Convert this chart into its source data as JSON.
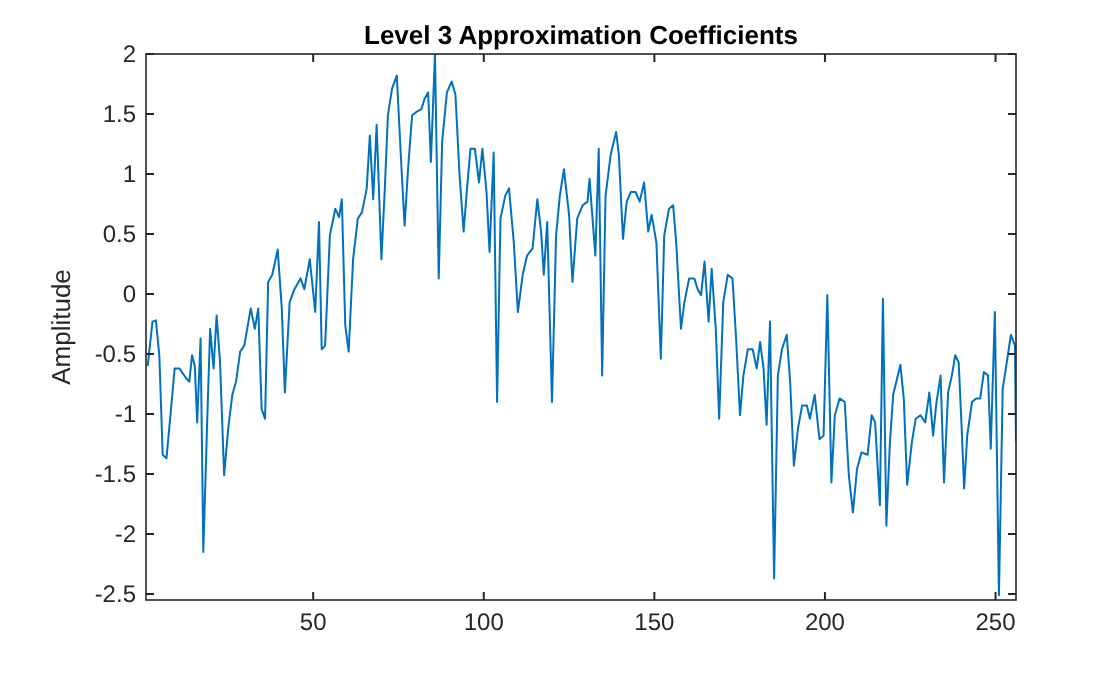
{
  "chart_data": {
    "type": "line",
    "title": "Level 3 Approximation Coefficients",
    "ylabel": "Amplitude",
    "x": [
      1.5,
      2.9,
      3.9,
      4.9,
      5.9,
      7,
      8.2,
      9.4,
      10.8,
      12.7,
      13.7,
      14.5,
      15.3,
      16,
      17,
      17.8,
      19,
      19.8,
      20.8,
      21.7,
      22.7,
      23.9,
      25.1,
      26.3,
      27.4,
      28.6,
      29.8,
      31.7,
      32.9,
      33.9,
      34.9,
      35.9,
      36.8,
      38,
      39.6,
      40.8,
      41.7,
      43.1,
      44.5,
      46.3,
      47.4,
      49,
      50.6,
      51.7,
      52.5,
      53.5,
      54.9,
      56.5,
      57.6,
      58.4,
      59.4,
      60.4,
      61.7,
      63.1,
      64.3,
      65.7,
      66.6,
      67.6,
      68.6,
      70,
      71,
      71.9,
      73.1,
      74.5,
      75.9,
      76.8,
      77.8,
      79,
      80.4,
      81.7,
      82.7,
      83.7,
      84.5,
      85.7,
      86.8,
      87.8,
      89.2,
      90.6,
      91.7,
      92.9,
      94.1,
      95.1,
      96.1,
      97.4,
      98.6,
      99.6,
      100.8,
      101.7,
      102.9,
      103.9,
      104.9,
      106.3,
      107.4,
      108.8,
      110,
      111.4,
      112.7,
      114.3,
      115.7,
      116.8,
      117.6,
      118.6,
      120,
      121.2,
      122.3,
      123.5,
      125,
      126,
      127.4,
      129,
      130.4,
      131,
      132.7,
      133.7,
      134.7,
      135.7,
      137.2,
      138.8,
      139.6,
      140.8,
      141.9,
      143.1,
      144.5,
      145.7,
      147,
      148.2,
      149.2,
      150.6,
      151.9,
      152.9,
      154.3,
      155.5,
      156.4,
      157.8,
      158.8,
      160.2,
      161.7,
      162.7,
      163.7,
      164.7,
      165.9,
      166.8,
      168,
      169,
      170.2,
      171.5,
      172.9,
      173.9,
      175.1,
      176.1,
      177.4,
      178.8,
      180,
      181,
      182,
      182.9,
      183.9,
      185.1,
      186.2,
      187.4,
      188.8,
      189.8,
      190.9,
      192.1,
      193.3,
      194.7,
      195.6,
      197,
      198.4,
      199.6,
      200.7,
      201.9,
      202.9,
      204.3,
      205.8,
      207,
      208.2,
      209.4,
      210.7,
      212.5,
      213.7,
      214.7,
      216.1,
      217,
      218,
      219,
      220,
      221.1,
      222.1,
      223.1,
      224.1,
      225.5,
      226.6,
      228,
      229.4,
      230.6,
      231.7,
      232.7,
      233.9,
      234.9,
      236.1,
      237.2,
      238.2,
      239.2,
      240,
      240.8,
      241.7,
      243.1,
      244.3,
      245.5,
      246.6,
      247.8,
      248.6,
      249.8,
      251,
      252.1,
      253.3,
      254.5,
      255.7,
      256
    ],
    "series": [
      {
        "color": "#0072bd",
        "values": [
          -0.6,
          -0.23,
          -0.22,
          -0.51,
          -1.34,
          -1.37,
          -1,
          -0.62,
          -0.62,
          -0.7,
          -0.73,
          -0.51,
          -0.6,
          -1.07,
          -0.37,
          -2.15,
          -1,
          -0.29,
          -0.62,
          -0.18,
          -0.57,
          -1.51,
          -1.12,
          -0.84,
          -0.73,
          -0.48,
          -0.43,
          -0.12,
          -0.29,
          -0.12,
          -0.96,
          -1.04,
          0.1,
          0.16,
          0.37,
          -0.12,
          -0.82,
          -0.07,
          0.04,
          0.13,
          0.04,
          0.29,
          -0.15,
          0.6,
          -0.46,
          -0.43,
          0.49,
          0.71,
          0.64,
          0.79,
          -0.26,
          -0.48,
          0.29,
          0.63,
          0.68,
          0.88,
          1.32,
          0.79,
          1.41,
          0.29,
          0.88,
          1.49,
          1.71,
          1.82,
          1.04,
          0.57,
          1.04,
          1.49,
          1.52,
          1.54,
          1.63,
          1.68,
          1.1,
          2,
          0.13,
          1.27,
          1.68,
          1.77,
          1.66,
          0.99,
          0.52,
          0.88,
          1.21,
          1.21,
          0.93,
          1.21,
          0.85,
          0.35,
          1.18,
          -0.9,
          0.63,
          0.82,
          0.88,
          0.43,
          -0.15,
          0.16,
          0.32,
          0.38,
          0.79,
          0.52,
          0.16,
          0.6,
          -0.9,
          0.49,
          0.82,
          1.04,
          0.66,
          0.1,
          0.63,
          0.74,
          0.77,
          0.96,
          0.32,
          1.21,
          -0.68,
          0.82,
          1.16,
          1.35,
          1.16,
          0.46,
          0.77,
          0.85,
          0.85,
          0.77,
          0.93,
          0.52,
          0.66,
          0.43,
          -0.54,
          0.49,
          0.71,
          0.74,
          0.43,
          -0.29,
          -0.07,
          0.13,
          0.13,
          0.04,
          -0.01,
          0.27,
          -0.23,
          0.21,
          -0.29,
          -1.04,
          -0.07,
          0.16,
          0.13,
          -0.34,
          -1.01,
          -0.68,
          -0.46,
          -0.46,
          -0.62,
          -0.4,
          -0.62,
          -1.09,
          -0.23,
          -2.37,
          -0.68,
          -0.46,
          -0.34,
          -0.73,
          -1.43,
          -1.12,
          -0.93,
          -0.93,
          -1.04,
          -0.84,
          -1.21,
          -1.18,
          -0.01,
          -1.57,
          -1.01,
          -0.87,
          -0.9,
          -1.51,
          -1.82,
          -1.46,
          -1.32,
          -1.34,
          -1.01,
          -1.07,
          -1.76,
          -0.04,
          -1.93,
          -1.26,
          -0.84,
          -0.71,
          -0.59,
          -0.87,
          -1.59,
          -1.23,
          -1.04,
          -1.01,
          -1.07,
          -0.82,
          -1.18,
          -0.9,
          -0.68,
          -1.57,
          -0.82,
          -0.68,
          -0.51,
          -0.57,
          -1.07,
          -1.62,
          -1.18,
          -0.9,
          -0.87,
          -0.87,
          -0.65,
          -0.68,
          -1.29,
          -0.15,
          -2.51,
          -0.79,
          -0.57,
          -0.34,
          -0.43,
          -1.23
        ]
      }
    ],
    "xlim": [
      1,
      256
    ],
    "xticks": [
      50,
      100,
      150,
      200,
      250
    ],
    "ylim": [
      -2.55,
      2
    ],
    "yticks": [
      -2.5,
      -2,
      -1.5,
      -1,
      -0.5,
      0,
      0.5,
      1,
      1.5,
      2
    ],
    "grid": false,
    "marker": "none",
    "line_style": "solid"
  }
}
